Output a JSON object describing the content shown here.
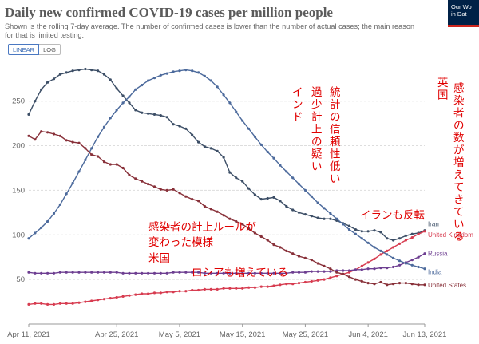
{
  "header": {
    "title": "Daily new confirmed COVID-19 cases per million people",
    "subtitle": "Shown is the rolling 7-day average. The number of confirmed cases is lower than the number of actual cases; the main reason for that is limited testing.",
    "logo_line1": "Our Wo",
    "logo_line2": "in Dat"
  },
  "toggle": {
    "linear": "LINEAR",
    "log": "LOG"
  },
  "chart_data": {
    "type": "line",
    "x": [
      "Apr 11",
      "Apr 12",
      "Apr 13",
      "Apr 14",
      "Apr 15",
      "Apr 16",
      "Apr 17",
      "Apr 18",
      "Apr 19",
      "Apr 20",
      "Apr 21",
      "Apr 22",
      "Apr 23",
      "Apr 24",
      "Apr 25",
      "Apr 26",
      "Apr 27",
      "Apr 28",
      "Apr 29",
      "Apr 30",
      "May 1",
      "May 2",
      "May 3",
      "May 4",
      "May 5",
      "May 6",
      "May 7",
      "May 8",
      "May 9",
      "May 10",
      "May 11",
      "May 12",
      "May 13",
      "May 14",
      "May 15",
      "May 16",
      "May 17",
      "May 18",
      "May 19",
      "May 20",
      "May 21",
      "May 22",
      "May 23",
      "May 24",
      "May 25",
      "May 26",
      "May 27",
      "May 28",
      "May 29",
      "May 30",
      "May 31",
      "Jun 1",
      "Jun 2",
      "Jun 3",
      "Jun 4",
      "Jun 5",
      "Jun 6",
      "Jun 7",
      "Jun 8",
      "Jun 9",
      "Jun 10",
      "Jun 11",
      "Jun 12",
      "Jun 13"
    ],
    "x_ticks": [
      "Apr 11, 2021",
      "Apr 25, 2021",
      "May 5, 2021",
      "May 15, 2021",
      "May 25, 2021",
      "Jun 4, 2021",
      "Jun 13, 2021"
    ],
    "x_tick_index": [
      0,
      14,
      24,
      34,
      44,
      54,
      63
    ],
    "ylim": [
      0,
      290
    ],
    "y_ticks": [
      50,
      100,
      150,
      200,
      250
    ],
    "series": [
      {
        "name": "Iran",
        "color": "#3c4e66",
        "label_offset": -8,
        "values": [
          235,
          250,
          263,
          271,
          275,
          280,
          282,
          284,
          285,
          286,
          285,
          284,
          280,
          274,
          264,
          256,
          248,
          240,
          237,
          236,
          235,
          234,
          232,
          224,
          222,
          219,
          212,
          204,
          199,
          197,
          194,
          187,
          170,
          164,
          160,
          152,
          145,
          140,
          141,
          142,
          138,
          132,
          128,
          125,
          123,
          121,
          119,
          118,
          118,
          116,
          113,
          110,
          106,
          104,
          104,
          105,
          103,
          96,
          94,
          96,
          99,
          101,
          102,
          105
        ]
      },
      {
        "name": "United Kingdom",
        "color": "#d73c50",
        "label_offset": 4,
        "values": [
          22,
          23,
          23,
          22,
          22,
          23,
          23,
          23,
          24,
          25,
          26,
          27,
          28,
          29,
          30,
          31,
          32,
          33,
          34,
          34,
          35,
          35,
          36,
          36,
          37,
          37,
          38,
          38,
          39,
          39,
          39,
          40,
          40,
          40,
          40,
          41,
          41,
          42,
          42,
          43,
          44,
          45,
          45,
          46,
          47,
          48,
          49,
          50,
          52,
          54,
          56,
          58,
          61,
          65,
          69,
          73,
          78,
          82,
          86,
          90,
          94,
          97,
          101,
          104
        ]
      },
      {
        "name": "Russia",
        "color": "#6d3e91",
        "label_offset": 0,
        "values": [
          58,
          57,
          57,
          57,
          57,
          58,
          58,
          58,
          58,
          58,
          58,
          58,
          58,
          58,
          58,
          57,
          57,
          57,
          57,
          57,
          57,
          57,
          57,
          58,
          58,
          58,
          58,
          58,
          57,
          57,
          57,
          57,
          57,
          57,
          57,
          57,
          57,
          57,
          57,
          57,
          57,
          57,
          58,
          58,
          58,
          59,
          59,
          59,
          59,
          60,
          60,
          60,
          61,
          61,
          62,
          62,
          63,
          63,
          64,
          66,
          69,
          72,
          75,
          79
        ]
      },
      {
        "name": "India",
        "color": "#4c6a9c",
        "label_offset": 4,
        "values": [
          96,
          102,
          108,
          115,
          124,
          134,
          146,
          158,
          171,
          184,
          197,
          210,
          221,
          231,
          240,
          248,
          255,
          263,
          268,
          273,
          276,
          279,
          281,
          283,
          284,
          285,
          284,
          282,
          278,
          273,
          266,
          257,
          248,
          238,
          228,
          219,
          210,
          201,
          193,
          186,
          178,
          171,
          164,
          157,
          150,
          143,
          136,
          130,
          124,
          118,
          112,
          106,
          101,
          96,
          91,
          86,
          82,
          78,
          74,
          71,
          68,
          66,
          64,
          62
        ]
      },
      {
        "name": "United States",
        "color": "#883039",
        "label_offset": 0,
        "values": [
          211,
          207,
          216,
          215,
          213,
          211,
          206,
          204,
          203,
          197,
          190,
          188,
          182,
          179,
          179,
          175,
          167,
          163,
          160,
          157,
          154,
          151,
          150,
          151,
          147,
          143,
          140,
          138,
          132,
          129,
          126,
          122,
          118,
          115,
          112,
          107,
          102,
          98,
          94,
          89,
          86,
          82,
          79,
          76,
          74,
          72,
          68,
          65,
          62,
          58,
          56,
          53,
          50,
          48,
          46,
          45,
          47,
          44,
          45,
          46,
          46,
          45,
          44,
          44
        ]
      }
    ]
  },
  "annotations": {
    "us_rule": [
      "感染者の計上ルールが",
      "変わった模様",
      "米国"
    ],
    "russia": "ロシアも増えている",
    "india": [
      "統計の信頼性低い",
      "過少計上の疑い",
      "インド"
    ],
    "iran": "イランも反転",
    "uk": [
      "感染者の数が増えてきている",
      "英国"
    ]
  }
}
